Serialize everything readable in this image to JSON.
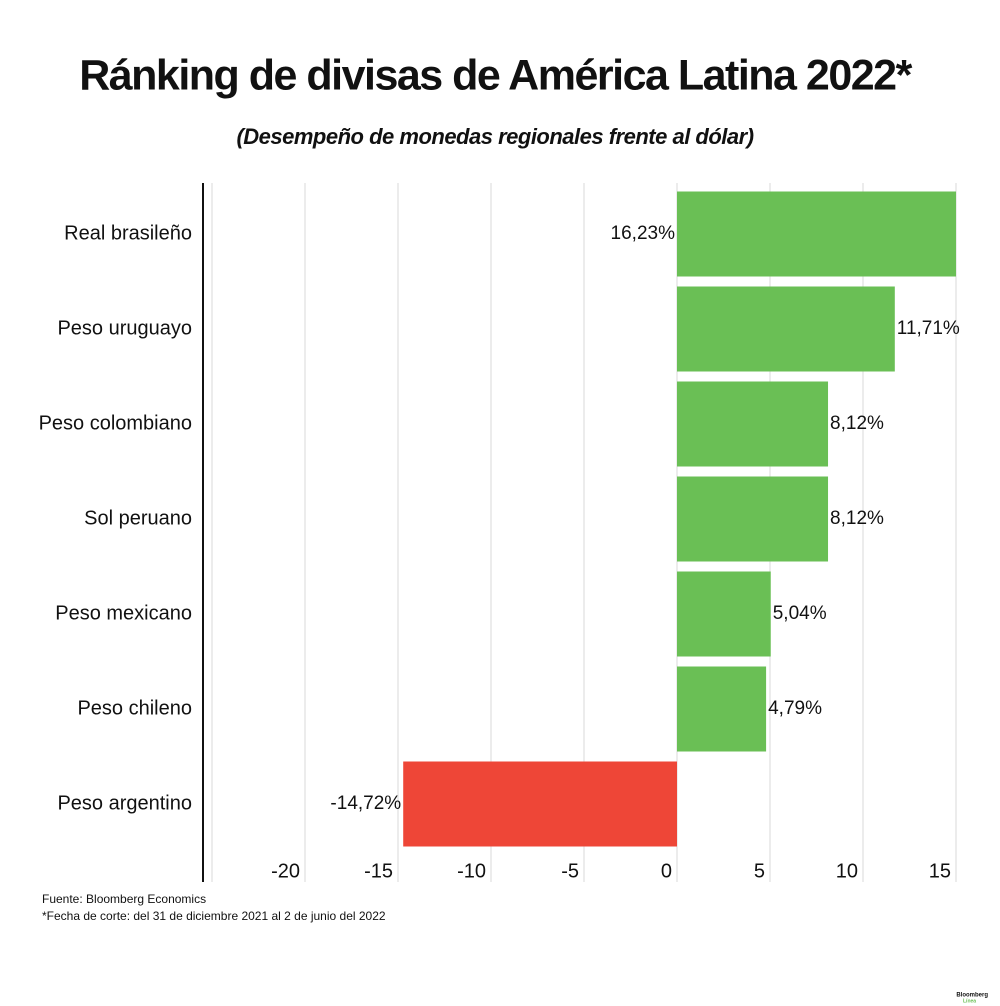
{
  "chart_data": {
    "type": "hbar",
    "title": "Ránking de divisas de América Latina 2022*",
    "subtitle": "(Desempeño de monedas regionales frente al dólar)",
    "categories": [
      "Real brasileño",
      "Peso uruguayo",
      "Peso colombiano",
      "Sol peruano",
      "Peso mexicano",
      "Peso chileno",
      "Peso argentino"
    ],
    "values": [
      16.23,
      11.71,
      8.12,
      8.12,
      5.04,
      4.79,
      -14.72
    ],
    "value_labels": [
      "16,23%",
      "11,71%",
      "8,12%",
      "8,12%",
      "5,04%",
      "4,79%",
      "-14,72%"
    ],
    "positive_color": "#6abf55",
    "negative_color": "#ee4637",
    "xlim": [
      -25,
      15
    ],
    "xticks": [
      -20,
      -15,
      -10,
      -5,
      0,
      5,
      10,
      15
    ],
    "grid": true,
    "notes": [
      "Fuente: Bloomberg Economics",
      "*Fecha de corte: del 31 de diciembre 2021 al 2 de junio del 2022"
    ],
    "logo": [
      "Bloomberg",
      "Línea"
    ]
  }
}
